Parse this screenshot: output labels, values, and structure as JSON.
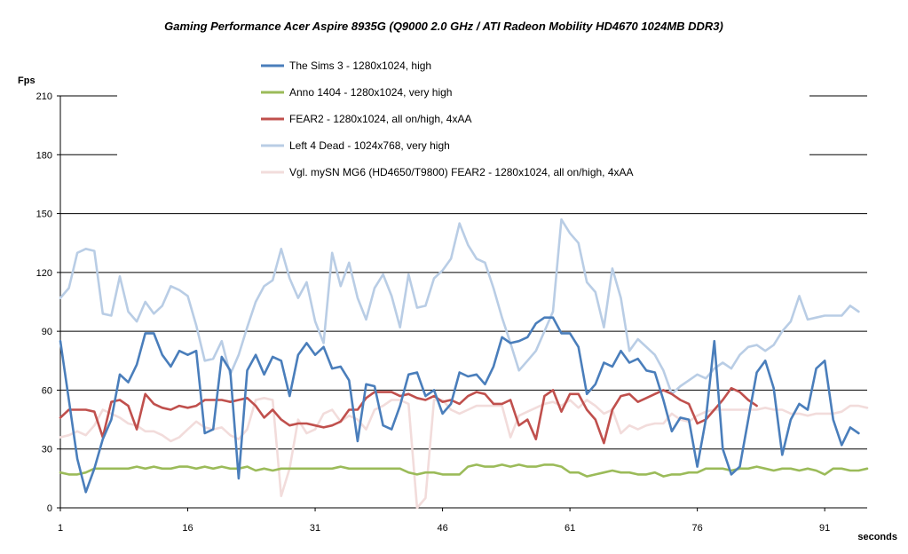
{
  "chart_data": {
    "type": "line",
    "title": "Gaming Performance Acer Aspire 8935G (Q9000 2.0 GHz / ATI Radeon Mobility  HD4670 1024MB DDR3)",
    "xlabel": "seconds",
    "ylabel": "Fps",
    "xlim": [
      1,
      96
    ],
    "ylim": [
      0,
      210
    ],
    "x_ticks": [
      1,
      16,
      31,
      46,
      61,
      76,
      91
    ],
    "y_ticks": [
      0,
      30,
      60,
      90,
      120,
      150,
      180,
      210
    ],
    "grid": true,
    "legend_position": "top",
    "series": [
      {
        "name": "The Sims 3 - 1280x1024,  high",
        "color": "#4a7ebb",
        "values": [
          85,
          55,
          25,
          8,
          20,
          35,
          45,
          68,
          64,
          73,
          89,
          89,
          78,
          72,
          80,
          78,
          80,
          38,
          40,
          77,
          70,
          15,
          70,
          78,
          68,
          77,
          75,
          57,
          78,
          84,
          78,
          82,
          71,
          72,
          65,
          34,
          63,
          62,
          42,
          40,
          52,
          68,
          69,
          57,
          60,
          48,
          53,
          69,
          67,
          68,
          63,
          72,
          87,
          84,
          85,
          87,
          94,
          97,
          97,
          89,
          89,
          82,
          58,
          63,
          74,
          72,
          80,
          74,
          76,
          70,
          69,
          55,
          39,
          46,
          45,
          21,
          45,
          85,
          30,
          17,
          21,
          45,
          69,
          75,
          61,
          27,
          45,
          53,
          50,
          71,
          75,
          45,
          32,
          41,
          38
        ]
      },
      {
        "name": "Anno 1404 - 1280x1024,  very high",
        "color": "#9bbb59",
        "values": [
          18,
          17,
          17,
          18,
          20,
          20,
          20,
          20,
          20,
          21,
          20,
          21,
          20,
          20,
          21,
          21,
          20,
          21,
          20,
          21,
          20,
          20,
          21,
          19,
          20,
          19,
          20,
          20,
          20,
          20,
          20,
          20,
          20,
          21,
          20,
          20,
          20,
          20,
          20,
          20,
          20,
          18,
          17,
          18,
          18,
          17,
          17,
          17,
          21,
          22,
          21,
          21,
          22,
          21,
          22,
          21,
          21,
          22,
          22,
          21,
          18,
          18,
          16,
          17,
          18,
          19,
          18,
          18,
          17,
          17,
          18,
          16,
          17,
          17,
          18,
          18,
          20,
          20,
          20,
          19,
          20,
          20,
          21,
          20,
          19,
          20,
          20,
          19,
          20,
          19,
          17,
          20,
          20,
          19,
          19,
          20
        ]
      },
      {
        "name": "FEAR2 - 1280x1024,  all on/high, 4xAA",
        "color": "#c0504d",
        "values": [
          46,
          50,
          50,
          50,
          49,
          36,
          54,
          55,
          52,
          40,
          58,
          53,
          51,
          50,
          52,
          51,
          52,
          55,
          55,
          55,
          54,
          55,
          56,
          52,
          46,
          50,
          45,
          42,
          43,
          43,
          42,
          41,
          42,
          44,
          50,
          50,
          56,
          59,
          59,
          59,
          57,
          58,
          56,
          55,
          57,
          54,
          55,
          53,
          57,
          59,
          58,
          53,
          53,
          55,
          42,
          45,
          35,
          57,
          60,
          49,
          58,
          58,
          50,
          45,
          33,
          50,
          57,
          58,
          54,
          56,
          58,
          60,
          58,
          55,
          53,
          43,
          45,
          50,
          55,
          61,
          59,
          55,
          52
        ]
      },
      {
        "name": "Left 4 Dead - 1024x768,  very high",
        "color": "#b9cde5",
        "values": [
          107,
          112,
          130,
          132,
          131,
          99,
          98,
          118,
          100,
          95,
          105,
          99,
          103,
          113,
          111,
          108,
          93,
          75,
          76,
          85,
          68,
          78,
          92,
          105,
          113,
          116,
          132,
          117,
          107,
          115,
          95,
          84,
          130,
          113,
          125,
          107,
          96,
          112,
          119,
          108,
          92,
          119,
          102,
          103,
          117,
          121,
          127,
          145,
          134,
          127,
          125,
          112,
          97,
          84,
          70,
          75,
          80,
          90,
          100,
          147,
          140,
          135,
          115,
          110,
          92,
          122,
          107,
          80,
          86,
          82,
          78,
          70,
          58,
          62,
          65,
          68,
          66,
          71,
          74,
          71,
          78,
          82,
          83,
          80,
          83,
          90,
          95,
          108,
          96,
          97,
          98,
          98,
          98,
          103,
          100
        ]
      },
      {
        "name": "Vgl. mySN MG6 (HD4650/T9800)  FEAR2 - 1280x1024,  all on/high, 4xAA",
        "color": "#f2dcdb",
        "values": [
          36,
          37,
          39,
          37,
          42,
          50,
          48,
          46,
          43,
          42,
          39,
          39,
          37,
          34,
          36,
          40,
          44,
          41,
          40,
          41,
          37,
          35,
          40,
          55,
          56,
          55,
          6,
          20,
          45,
          38,
          40,
          48,
          50,
          44,
          47,
          45,
          40,
          50,
          52,
          55,
          55,
          53,
          0,
          5,
          55,
          55,
          50,
          48,
          50,
          52,
          52,
          52,
          52,
          36,
          47,
          49,
          51,
          53,
          54,
          52,
          55,
          51,
          55,
          52,
          48,
          50,
          38,
          42,
          40,
          42,
          43,
          43,
          48,
          45,
          44,
          47,
          49,
          50,
          50,
          50,
          50,
          50,
          50,
          51,
          50,
          50,
          48,
          48,
          47,
          48,
          48,
          48,
          49,
          52,
          52,
          51
        ]
      }
    ]
  }
}
